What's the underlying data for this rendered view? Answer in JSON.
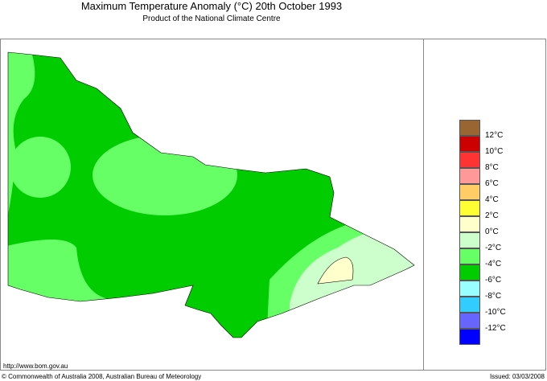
{
  "title": "Maximum Temperature Anomaly (°C)  20th October 1993",
  "subtitle": "Product of the National Climate Centre",
  "legend": {
    "colors": [
      "#996633",
      "#cc0000",
      "#ff3333",
      "#ff9999",
      "#ffcc66",
      "#ffff33",
      "#ffffcc",
      "#ccffcc",
      "#66ff66",
      "#00cc00",
      "#99ffff",
      "#33ccff",
      "#6666ff",
      "#0000ff"
    ],
    "labels": [
      "12°C",
      "10°C",
      "8°C",
      "6°C",
      "4°C",
      "2°C",
      "0°C",
      "-2°C",
      "-4°C",
      "-6°C",
      "-8°C",
      "-10°C",
      "-12°C"
    ]
  },
  "footer": {
    "url": "http://www.bom.gov.au",
    "copyright": "© Commonwealth of Australia 2008, Australian Bureau of Meteorology",
    "issued": "Issued: 03/03/2008"
  }
}
